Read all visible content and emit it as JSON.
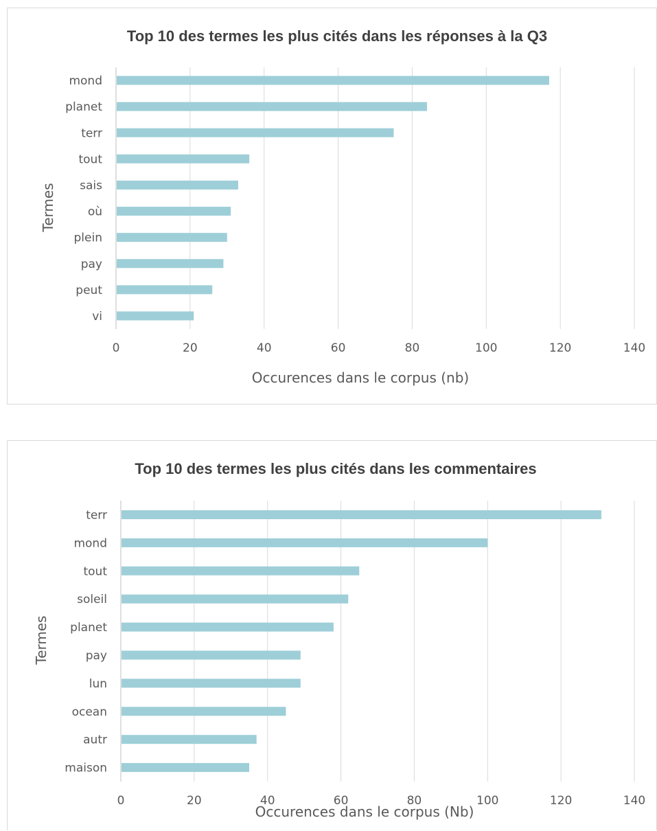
{
  "chart_data": [
    {
      "type": "bar",
      "orientation": "horizontal",
      "title": "Top 10 des termes les plus cités dans les réponses à la Q3",
      "xlabel": "Occurences dans le corpus (nb)",
      "ylabel": "Termes",
      "categories": [
        "mond",
        "planet",
        "terr",
        "tout",
        "sais",
        "où",
        "plein",
        "pay",
        "peut",
        "vi"
      ],
      "values": [
        117,
        84,
        75,
        36,
        33,
        31,
        30,
        29,
        26,
        21
      ],
      "xlim": [
        0,
        140
      ],
      "xticks": [
        "0",
        "20",
        "40",
        "60",
        "80",
        "100",
        "120",
        "140"
      ],
      "grid": "vertical",
      "bar_color": "#9ecfd8"
    },
    {
      "type": "bar",
      "orientation": "horizontal",
      "title": "Top 10 des termes les plus cités dans les commentaires",
      "xlabel": "Occurences dans le corpus (Nb)",
      "ylabel": "Termes",
      "categories": [
        "terr",
        "mond",
        "tout",
        "soleil",
        "planet",
        "pay",
        "lun",
        "ocean",
        "autr",
        "maison"
      ],
      "values": [
        131,
        100,
        65,
        62,
        58,
        49,
        49,
        45,
        37,
        35
      ],
      "xlim": [
        0,
        140
      ],
      "xticks": [
        "0",
        "20",
        "40",
        "60",
        "80",
        "100",
        "120",
        "140"
      ],
      "grid": "vertical",
      "bar_color": "#9ecfd8"
    }
  ]
}
